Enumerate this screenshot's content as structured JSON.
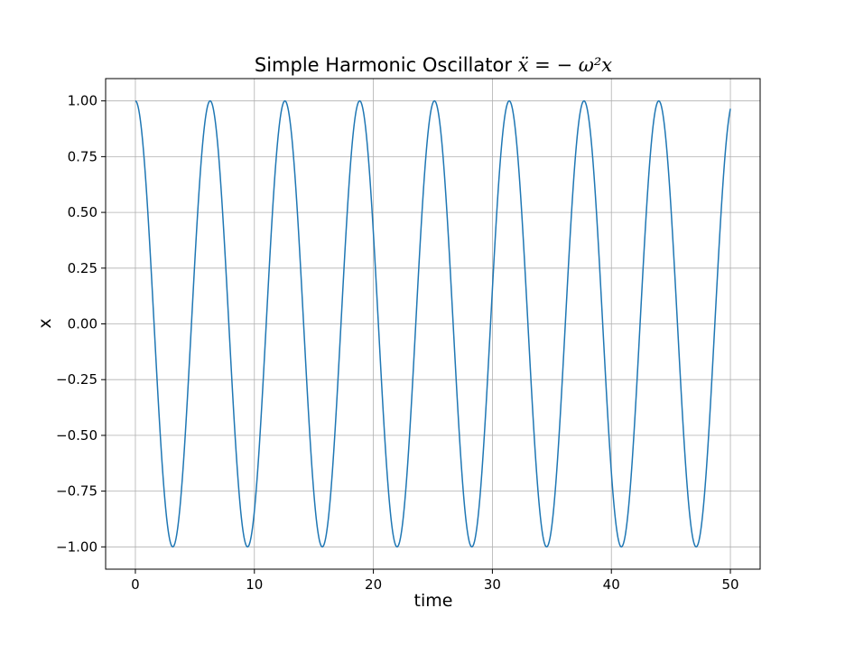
{
  "chart_data": {
    "type": "line",
    "title_prefix": "Simple Harmonic Oscillator ",
    "title_math": "ẍ = − ω²x",
    "xlabel": "time",
    "ylabel": "x",
    "xlim": [
      -2.5,
      52.5
    ],
    "ylim": [
      -1.1,
      1.1
    ],
    "x_ticks": [
      0,
      10,
      20,
      30,
      40,
      50
    ],
    "x_tick_labels": [
      "0",
      "10",
      "20",
      "30",
      "40",
      "50"
    ],
    "y_ticks": [
      1.0,
      0.75,
      0.5,
      0.25,
      0.0,
      -0.25,
      -0.5,
      -0.75,
      -1.0
    ],
    "y_tick_labels": [
      "1.00",
      "0.75",
      "0.50",
      "0.25",
      "0.00",
      "−0.25",
      "−0.50",
      "−0.75",
      "−1.00"
    ],
    "grid": true,
    "series": [
      {
        "color": "#1f77b4",
        "function": "cos(t)",
        "x_range": [
          0,
          50
        ],
        "points": [
          [
            0,
            1.0
          ],
          [
            3.1416,
            -1.0
          ],
          [
            6.2832,
            1.0
          ],
          [
            9.4248,
            -1.0
          ],
          [
            12.5664,
            1.0
          ],
          [
            15.708,
            -1.0
          ],
          [
            18.8496,
            1.0
          ],
          [
            21.9911,
            -1.0
          ],
          [
            25.1327,
            1.0
          ],
          [
            28.2743,
            -1.0
          ],
          [
            31.4159,
            1.0
          ],
          [
            34.5575,
            -1.0
          ],
          [
            37.6991,
            1.0
          ],
          [
            40.8407,
            -1.0
          ],
          [
            43.9823,
            1.0
          ],
          [
            47.1239,
            -1.0
          ],
          [
            50,
            0.965
          ]
        ]
      }
    ]
  }
}
